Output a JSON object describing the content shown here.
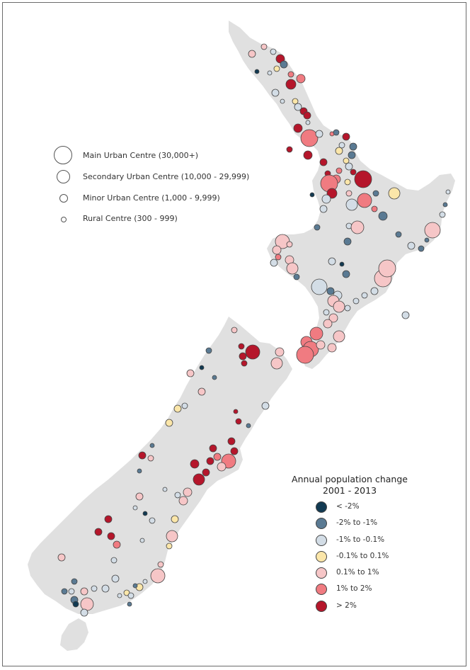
{
  "size_legend": [
    {
      "label": "Main Urban Centre (30,000+)",
      "icon": "circle-large-icon"
    },
    {
      "label": "Secondary Urban Centre (10,000 - 29,999)",
      "icon": "circle-medium-icon"
    },
    {
      "label": "Minor Urban Centre (1,000 - 9,999)",
      "icon": "circle-small-icon"
    },
    {
      "label": "Rural Centre (300 - 999)",
      "icon": "circle-tiny-icon"
    }
  ],
  "color_legend": {
    "title_line1": "Annual population change",
    "title_line2": "2001 - 2013",
    "classes": [
      {
        "label": "< -2%",
        "color": "#123a52"
      },
      {
        "label": "-2% to -1%",
        "color": "#5a7a93"
      },
      {
        "label": "-1% to -0.1%",
        "color": "#d3dde6"
      },
      {
        "label": "-0.1% to 0.1%",
        "color": "#fbe6a9"
      },
      {
        "label": "0.1% to 1%",
        "color": "#f6c6c7"
      },
      {
        "label": "1% to 2%",
        "color": "#f07b81"
      },
      {
        "label": "> 2%",
        "color": "#b5162b"
      }
    ]
  },
  "colors": {
    "land": "#e0e0e0",
    "background": "#ffffff",
    "outline": "#444444"
  }
}
